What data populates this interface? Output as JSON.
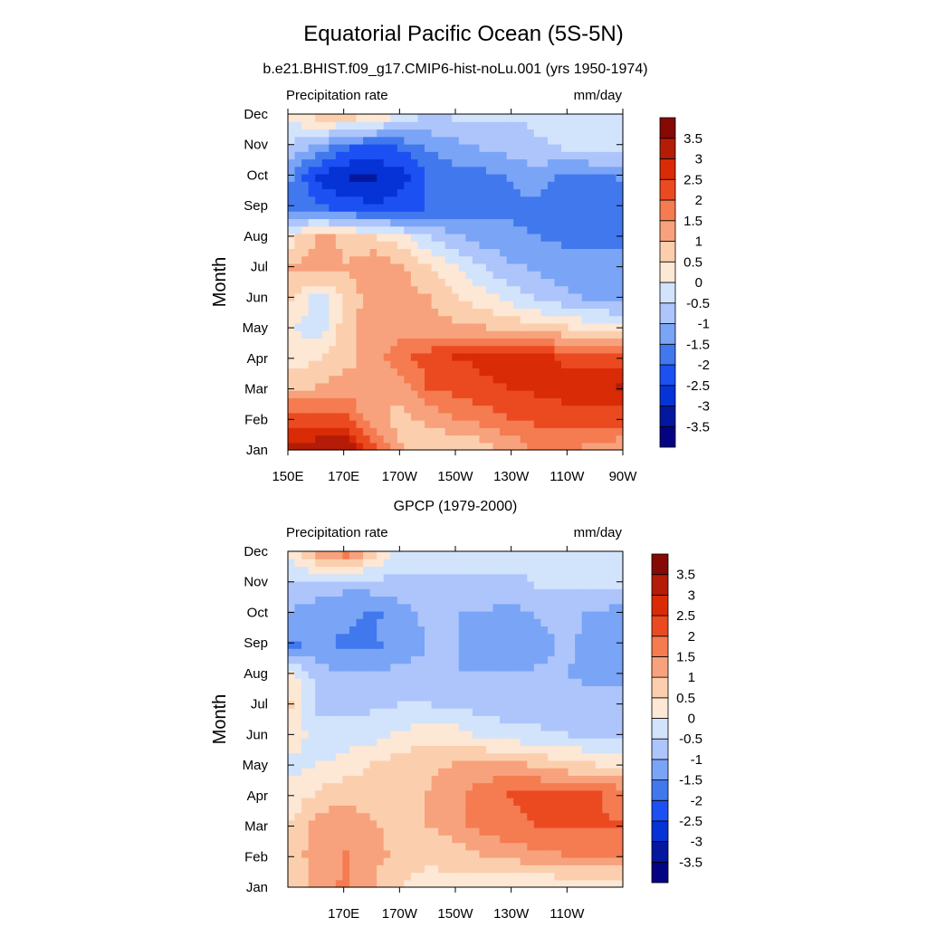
{
  "figure": {
    "title": "Equatorial Pacific Ocean (5S-5N)"
  },
  "chart_data": [
    {
      "type": "heatmap",
      "title": "b.e21.BHIST.f09_g17.CMIP6-hist-noLu.001 (yrs 1950-1974)",
      "left_label": "Precipitation rate",
      "right_label": "mm/day",
      "ylabel": "Month",
      "xlabel": "",
      "x_tick_labels": [
        "150E",
        "170E",
        "170W",
        "150W",
        "130W",
        "110W",
        "90W"
      ],
      "y_tick_labels": [
        "Jan",
        "Feb",
        "Mar",
        "Apr",
        "May",
        "Jun",
        "Jul",
        "Aug",
        "Sep",
        "Oct",
        "Nov",
        "Dec"
      ],
      "x_lon": [
        150,
        160,
        170,
        180,
        190,
        200,
        210,
        220,
        230,
        240,
        250,
        260,
        270
      ],
      "values": [
        [
          3.0,
          3.3,
          3.4,
          2.0,
          1.0,
          0.5,
          0.6,
          0.8,
          1.2,
          1.6,
          1.6,
          1.4,
          1.2
        ],
        [
          2.2,
          2.2,
          2.0,
          1.2,
          0.8,
          1.2,
          1.5,
          1.8,
          2.0,
          2.2,
          2.3,
          2.3,
          2.3
        ],
        [
          0.8,
          1.0,
          1.3,
          1.0,
          1.3,
          2.0,
          2.2,
          2.4,
          2.5,
          2.6,
          2.7,
          2.9,
          3.0
        ],
        [
          0.2,
          0.4,
          0.8,
          1.2,
          1.8,
          2.2,
          2.5,
          2.6,
          2.7,
          2.6,
          2.4,
          2.2,
          2.1
        ],
        [
          0.0,
          -0.3,
          0.8,
          1.4,
          1.3,
          1.2,
          1.1,
          1.0,
          0.9,
          0.7,
          0.5,
          0.3,
          0.1
        ],
        [
          0.5,
          -0.2,
          0.6,
          1.3,
          1.2,
          1.0,
          0.6,
          0.2,
          -0.2,
          -0.6,
          -0.9,
          -1.1,
          -1.3
        ],
        [
          1.0,
          1.2,
          1.0,
          1.4,
          1.1,
          0.6,
          0.0,
          -0.5,
          -0.9,
          -1.1,
          -1.3,
          -1.4,
          -1.4
        ],
        [
          0.3,
          1.1,
          0.9,
          0.6,
          0.2,
          -0.4,
          -0.9,
          -1.2,
          -1.4,
          -1.5,
          -1.6,
          -1.6,
          -1.6
        ],
        [
          -1.6,
          -1.9,
          -2.2,
          -2.4,
          -2.3,
          -2.0,
          -1.8,
          -1.7,
          -1.6,
          -1.6,
          -1.8,
          -1.9,
          -1.8
        ],
        [
          -1.5,
          -2.6,
          -3.0,
          -3.1,
          -2.7,
          -2.0,
          -1.8,
          -1.7,
          -1.5,
          -1.3,
          -1.7,
          -1.6,
          -1.5
        ],
        [
          -0.7,
          -1.3,
          -2.0,
          -2.2,
          -2.0,
          -1.5,
          -1.2,
          -1.0,
          -0.8,
          -0.6,
          -0.5,
          -0.4,
          -0.5
        ],
        [
          0.2,
          0.5,
          0.6,
          0.3,
          -0.3,
          -0.6,
          -0.5,
          -0.4,
          -0.5,
          -0.4,
          -0.1,
          -0.2,
          -0.3
        ]
      ],
      "levels": [
        -3.5,
        -3,
        -2.5,
        -2,
        -1.5,
        -1,
        -0.5,
        0,
        0.5,
        1,
        1.5,
        2,
        2.5,
        3,
        3.5
      ],
      "colorbar_labels": [
        "3.5",
        "3",
        "2.5",
        "2",
        "1.5",
        "1",
        "0.5",
        "0",
        "-0.5",
        "-1",
        "-1.5",
        "-2",
        "-2.5",
        "-3",
        "-3.5"
      ]
    },
    {
      "type": "heatmap",
      "title": "GPCP (1979-2000)",
      "left_label": "Precipitation rate",
      "right_label": "mm/day",
      "ylabel": "Month",
      "xlabel": "",
      "x_tick_labels": [
        "170E",
        "170W",
        "150W",
        "130W",
        "110W"
      ],
      "y_tick_labels": [
        "Jan",
        "Feb",
        "Mar",
        "Apr",
        "May",
        "Jun",
        "Jul",
        "Aug",
        "Sep",
        "Oct",
        "Nov",
        "Dec"
      ],
      "x_lon": [
        150,
        160,
        170,
        180,
        190,
        200,
        210,
        220,
        230,
        240,
        250,
        260,
        270
      ],
      "values": [
        [
          0.7,
          1.2,
          1.6,
          1.0,
          0.5,
          0.3,
          0.3,
          0.2,
          0.2,
          0.1,
          0.2,
          0.2,
          0.3
        ],
        [
          0.7,
          1.3,
          1.5,
          1.2,
          0.8,
          0.6,
          0.8,
          1.0,
          1.2,
          1.4,
          1.5,
          1.6,
          1.5
        ],
        [
          0.5,
          1.2,
          1.4,
          1.0,
          0.9,
          1.0,
          1.3,
          1.7,
          1.9,
          2.0,
          2.1,
          2.1,
          2.0
        ],
        [
          0.2,
          0.6,
          0.8,
          0.7,
          0.9,
          1.0,
          1.4,
          1.8,
          2.0,
          2.1,
          2.0,
          2.1,
          1.8
        ],
        [
          -0.2,
          0.0,
          0.2,
          0.5,
          0.8,
          0.9,
          1.0,
          1.1,
          1.1,
          0.9,
          0.7,
          0.5,
          0.4
        ],
        [
          0.4,
          -0.4,
          -0.3,
          -0.2,
          0.1,
          0.3,
          0.2,
          -0.1,
          -0.3,
          -0.4,
          -0.5,
          -0.6,
          -0.6
        ],
        [
          0.5,
          -0.6,
          -0.7,
          -0.6,
          -0.5,
          -0.5,
          -0.6,
          -0.7,
          -0.8,
          -0.8,
          -0.8,
          -0.9,
          -0.9
        ],
        [
          0.2,
          -0.8,
          -0.9,
          -0.9,
          -0.9,
          -0.9,
          -1.0,
          -1.0,
          -1.0,
          -0.9,
          -1.0,
          -1.1,
          -1.1
        ],
        [
          -1.6,
          -1.4,
          -1.6,
          -1.6,
          -1.2,
          -1.0,
          -1.0,
          -1.3,
          -1.4,
          -1.2,
          -0.9,
          -1.2,
          -1.3
        ],
        [
          -1.1,
          -1.3,
          -1.4,
          -1.6,
          -1.2,
          -0.9,
          -1.0,
          -1.1,
          -1.2,
          -1.0,
          -0.8,
          -1.1,
          -1.2
        ],
        [
          -0.6,
          -0.8,
          -0.9,
          -0.8,
          -0.7,
          -0.6,
          -0.6,
          -0.6,
          -0.6,
          -0.5,
          -0.5,
          -0.5,
          -0.5
        ],
        [
          0.0,
          1.1,
          1.5,
          0.6,
          -0.2,
          -0.3,
          -0.3,
          -0.4,
          -0.4,
          -0.4,
          -0.4,
          -0.4,
          -0.4
        ]
      ],
      "levels": [
        -3.5,
        -3,
        -2.5,
        -2,
        -1.5,
        -1,
        -0.5,
        0,
        0.5,
        1,
        1.5,
        2,
        2.5,
        3,
        3.5
      ],
      "colorbar_labels": [
        "3.5",
        "3",
        "2.5",
        "2",
        "1.5",
        "1",
        "0.5",
        "0",
        "-0.5",
        "-1",
        "-1.5",
        "-2",
        "-2.5",
        "-3",
        "-3.5"
      ]
    }
  ],
  "palette": {
    "colors": [
      "#040483",
      "#03189e",
      "#0533d5",
      "#1d50f3",
      "#4178ee",
      "#7aa4f6",
      "#adc5fb",
      "#d2e3fc",
      "#fde7d5",
      "#fbcfae",
      "#f7a27c",
      "#f57b51",
      "#eb4a21",
      "#d92b06",
      "#b41c07",
      "#850905"
    ]
  }
}
